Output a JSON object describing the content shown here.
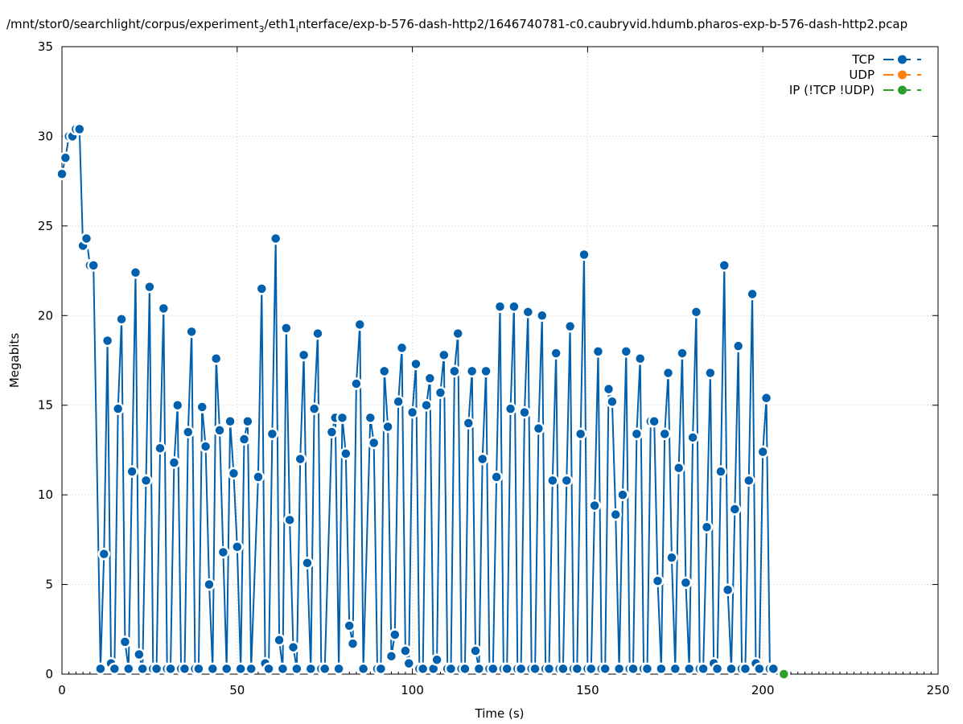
{
  "chart_data": {
    "type": "line",
    "title_pre": "/mnt/stor0/searchlight/corpus/experiment",
    "title_sub1": "3",
    "title_mid": "/eth1",
    "title_sub2": "i",
    "title_post": "nterface/exp-b-576-dash-http2/1646740781-c0.caubryvid.hdumb.pharos-exp-b-576-dash-http2.pcap",
    "xlabel": "Time (s)",
    "ylabel": "Megabits",
    "xlim": [
      0,
      250
    ],
    "ylim": [
      0,
      35
    ],
    "xticks": [
      0,
      50,
      100,
      150,
      200,
      250
    ],
    "yticks": [
      0,
      5,
      10,
      15,
      20,
      25,
      30,
      35
    ],
    "grid": true,
    "legend_position": "top-right",
    "series": [
      {
        "name": "TCP",
        "color": "#0060ad",
        "points": [
          [
            0,
            27.9
          ],
          [
            1,
            28.8
          ],
          [
            2,
            30.0
          ],
          [
            3,
            30.0
          ],
          [
            4,
            30.4
          ],
          [
            5,
            30.4
          ],
          [
            6,
            23.9
          ],
          [
            7,
            24.3
          ],
          [
            8,
            22.8
          ],
          [
            9,
            22.8
          ],
          [
            11,
            0.3
          ],
          [
            12,
            6.7
          ],
          [
            13,
            18.6
          ],
          [
            14,
            0.6
          ],
          [
            15,
            0.3
          ],
          [
            16,
            14.8
          ],
          [
            17,
            19.8
          ],
          [
            18,
            1.8
          ],
          [
            19,
            0.3
          ],
          [
            20,
            11.3
          ],
          [
            21,
            22.4
          ],
          [
            22,
            1.1
          ],
          [
            23,
            0.3
          ],
          [
            24,
            10.8
          ],
          [
            25,
            21.6
          ],
          [
            26,
            0.3
          ],
          [
            27,
            0.3
          ],
          [
            28,
            12.6
          ],
          [
            29,
            20.4
          ],
          [
            30,
            0.3
          ],
          [
            31,
            0.3
          ],
          [
            32,
            11.8
          ],
          [
            33,
            15.0
          ],
          [
            34,
            0.3
          ],
          [
            35,
            0.3
          ],
          [
            36,
            13.5
          ],
          [
            37,
            19.1
          ],
          [
            38,
            0.3
          ],
          [
            39,
            0.3
          ],
          [
            40,
            14.9
          ],
          [
            41,
            12.7
          ],
          [
            42,
            5.0
          ],
          [
            43,
            0.3
          ],
          [
            44,
            17.6
          ],
          [
            45,
            13.6
          ],
          [
            46,
            6.8
          ],
          [
            47,
            0.3
          ],
          [
            48,
            14.1
          ],
          [
            49,
            11.2
          ],
          [
            50,
            7.1
          ],
          [
            51,
            0.3
          ],
          [
            52,
            13.1
          ],
          [
            53,
            14.1
          ],
          [
            54,
            0.3
          ],
          [
            56,
            11.0
          ],
          [
            57,
            21.5
          ],
          [
            58,
            0.6
          ],
          [
            59,
            0.3
          ],
          [
            60,
            13.4
          ],
          [
            61,
            24.3
          ],
          [
            62,
            1.9
          ],
          [
            63,
            0.3
          ],
          [
            64,
            19.3
          ],
          [
            65,
            8.6
          ],
          [
            66,
            1.5
          ],
          [
            67,
            0.3
          ],
          [
            68,
            12.0
          ],
          [
            69,
            17.8
          ],
          [
            70,
            6.2
          ],
          [
            71,
            0.3
          ],
          [
            72,
            14.8
          ],
          [
            73,
            19.0
          ],
          [
            74,
            0.3
          ],
          [
            75,
            0.3
          ],
          [
            77,
            13.5
          ],
          [
            78,
            14.3
          ],
          [
            79,
            0.3
          ],
          [
            80,
            14.3
          ],
          [
            81,
            12.3
          ],
          [
            82,
            2.7
          ],
          [
            83,
            1.7
          ],
          [
            84,
            16.2
          ],
          [
            85,
            19.5
          ],
          [
            86,
            0.3
          ],
          [
            88,
            14.3
          ],
          [
            89,
            12.9
          ],
          [
            90,
            0.3
          ],
          [
            91,
            0.3
          ],
          [
            92,
            16.9
          ],
          [
            93,
            13.8
          ],
          [
            94,
            1.0
          ],
          [
            95,
            2.2
          ],
          [
            96,
            15.2
          ],
          [
            97,
            18.2
          ],
          [
            98,
            1.3
          ],
          [
            99,
            0.6
          ],
          [
            100,
            14.6
          ],
          [
            101,
            17.3
          ],
          [
            102,
            0.3
          ],
          [
            103,
            0.3
          ],
          [
            104,
            15.0
          ],
          [
            105,
            16.5
          ],
          [
            106,
            0.3
          ],
          [
            107,
            0.8
          ],
          [
            108,
            15.7
          ],
          [
            109,
            17.8
          ],
          [
            110,
            0.3
          ],
          [
            111,
            0.3
          ],
          [
            112,
            16.9
          ],
          [
            113,
            19.0
          ],
          [
            114,
            0.3
          ],
          [
            115,
            0.3
          ],
          [
            116,
            14.0
          ],
          [
            117,
            16.9
          ],
          [
            118,
            1.3
          ],
          [
            119,
            0.3
          ],
          [
            120,
            12.0
          ],
          [
            121,
            16.9
          ],
          [
            122,
            0.3
          ],
          [
            123,
            0.3
          ],
          [
            124,
            11.0
          ],
          [
            125,
            20.5
          ],
          [
            126,
            0.3
          ],
          [
            127,
            0.3
          ],
          [
            128,
            14.8
          ],
          [
            129,
            20.5
          ],
          [
            130,
            0.3
          ],
          [
            131,
            0.3
          ],
          [
            132,
            14.6
          ],
          [
            133,
            20.2
          ],
          [
            134,
            0.3
          ],
          [
            135,
            0.3
          ],
          [
            136,
            13.7
          ],
          [
            137,
            20.0
          ],
          [
            138,
            0.3
          ],
          [
            139,
            0.3
          ],
          [
            140,
            10.8
          ],
          [
            141,
            17.9
          ],
          [
            142,
            0.3
          ],
          [
            143,
            0.3
          ],
          [
            144,
            10.8
          ],
          [
            145,
            19.4
          ],
          [
            146,
            0.3
          ],
          [
            147,
            0.3
          ],
          [
            148,
            13.4
          ],
          [
            149,
            23.4
          ],
          [
            150,
            0.3
          ],
          [
            151,
            0.3
          ],
          [
            152,
            9.4
          ],
          [
            153,
            18.0
          ],
          [
            154,
            0.3
          ],
          [
            155,
            0.3
          ],
          [
            156,
            15.9
          ],
          [
            157,
            15.2
          ],
          [
            158,
            8.9
          ],
          [
            159,
            0.3
          ],
          [
            160,
            10.0
          ],
          [
            161,
            18.0
          ],
          [
            162,
            0.3
          ],
          [
            163,
            0.3
          ],
          [
            164,
            13.4
          ],
          [
            165,
            17.6
          ],
          [
            166,
            0.3
          ],
          [
            167,
            0.3
          ],
          [
            168,
            14.1
          ],
          [
            169,
            14.1
          ],
          [
            170,
            5.2
          ],
          [
            171,
            0.3
          ],
          [
            172,
            13.4
          ],
          [
            173,
            16.8
          ],
          [
            174,
            6.5
          ],
          [
            175,
            0.3
          ],
          [
            176,
            11.5
          ],
          [
            177,
            17.9
          ],
          [
            178,
            5.1
          ],
          [
            179,
            0.3
          ],
          [
            180,
            13.2
          ],
          [
            181,
            20.2
          ],
          [
            182,
            0.3
          ],
          [
            183,
            0.3
          ],
          [
            184,
            8.2
          ],
          [
            185,
            16.8
          ],
          [
            186,
            0.6
          ],
          [
            187,
            0.3
          ],
          [
            188,
            11.3
          ],
          [
            189,
            22.8
          ],
          [
            190,
            4.7
          ],
          [
            191,
            0.3
          ],
          [
            192,
            9.2
          ],
          [
            193,
            18.3
          ],
          [
            194,
            0.3
          ],
          [
            195,
            0.3
          ],
          [
            196,
            10.8
          ],
          [
            197,
            21.2
          ],
          [
            198,
            0.6
          ],
          [
            199,
            0.3
          ],
          [
            200,
            12.4
          ],
          [
            201,
            15.4
          ],
          [
            202,
            0.3
          ],
          [
            203,
            0.3
          ]
        ]
      },
      {
        "name": "UDP",
        "color": "#ff7f0e",
        "points": []
      },
      {
        "name": "IP (!TCP  !UDP)",
        "color": "#2ca02c",
        "points": [
          [
            206,
            0
          ]
        ]
      }
    ]
  }
}
